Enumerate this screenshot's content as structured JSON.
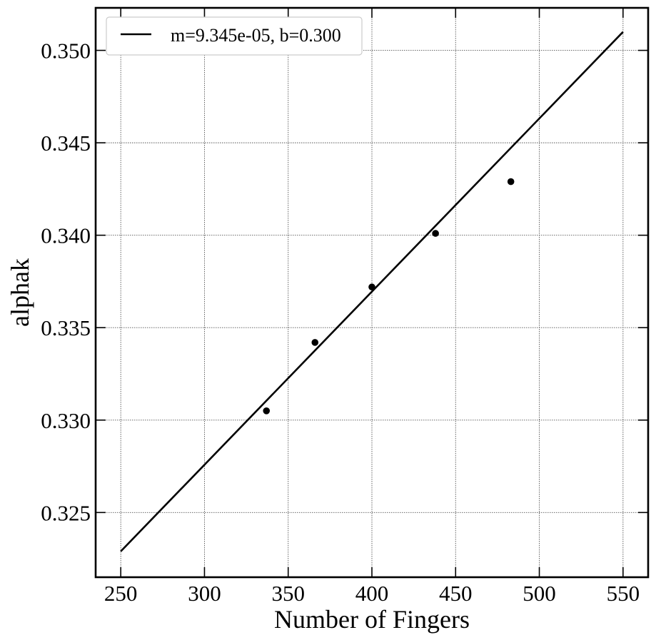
{
  "chart_data": {
    "type": "scatter",
    "xlabel": "Number of Fingers",
    "ylabel": "alphak",
    "xlim": [
      235,
      565
    ],
    "ylim": [
      0.3215,
      0.3523
    ],
    "xticks": [
      250,
      300,
      350,
      400,
      450,
      500,
      550
    ],
    "xtick_labels": [
      "250",
      "300",
      "350",
      "400",
      "450",
      "500",
      "550"
    ],
    "yticks": [
      0.325,
      0.33,
      0.335,
      0.34,
      0.345,
      0.35
    ],
    "ytick_labels": [
      "0.325",
      "0.330",
      "0.335",
      "0.340",
      "0.345",
      "0.350"
    ],
    "grid": true,
    "legend_position": "top-left",
    "points": [
      {
        "x": 337,
        "y": 0.3305
      },
      {
        "x": 366,
        "y": 0.3342
      },
      {
        "x": 400,
        "y": 0.3372
      },
      {
        "x": 438,
        "y": 0.3401
      },
      {
        "x": 483,
        "y": 0.3429
      }
    ],
    "fit_line": {
      "name": "m=9.345e-05, b=0.300",
      "x": [
        250,
        550
      ],
      "y": [
        0.3229,
        0.351
      ]
    },
    "colors": {
      "line": "#000000",
      "points": "#000000"
    }
  }
}
